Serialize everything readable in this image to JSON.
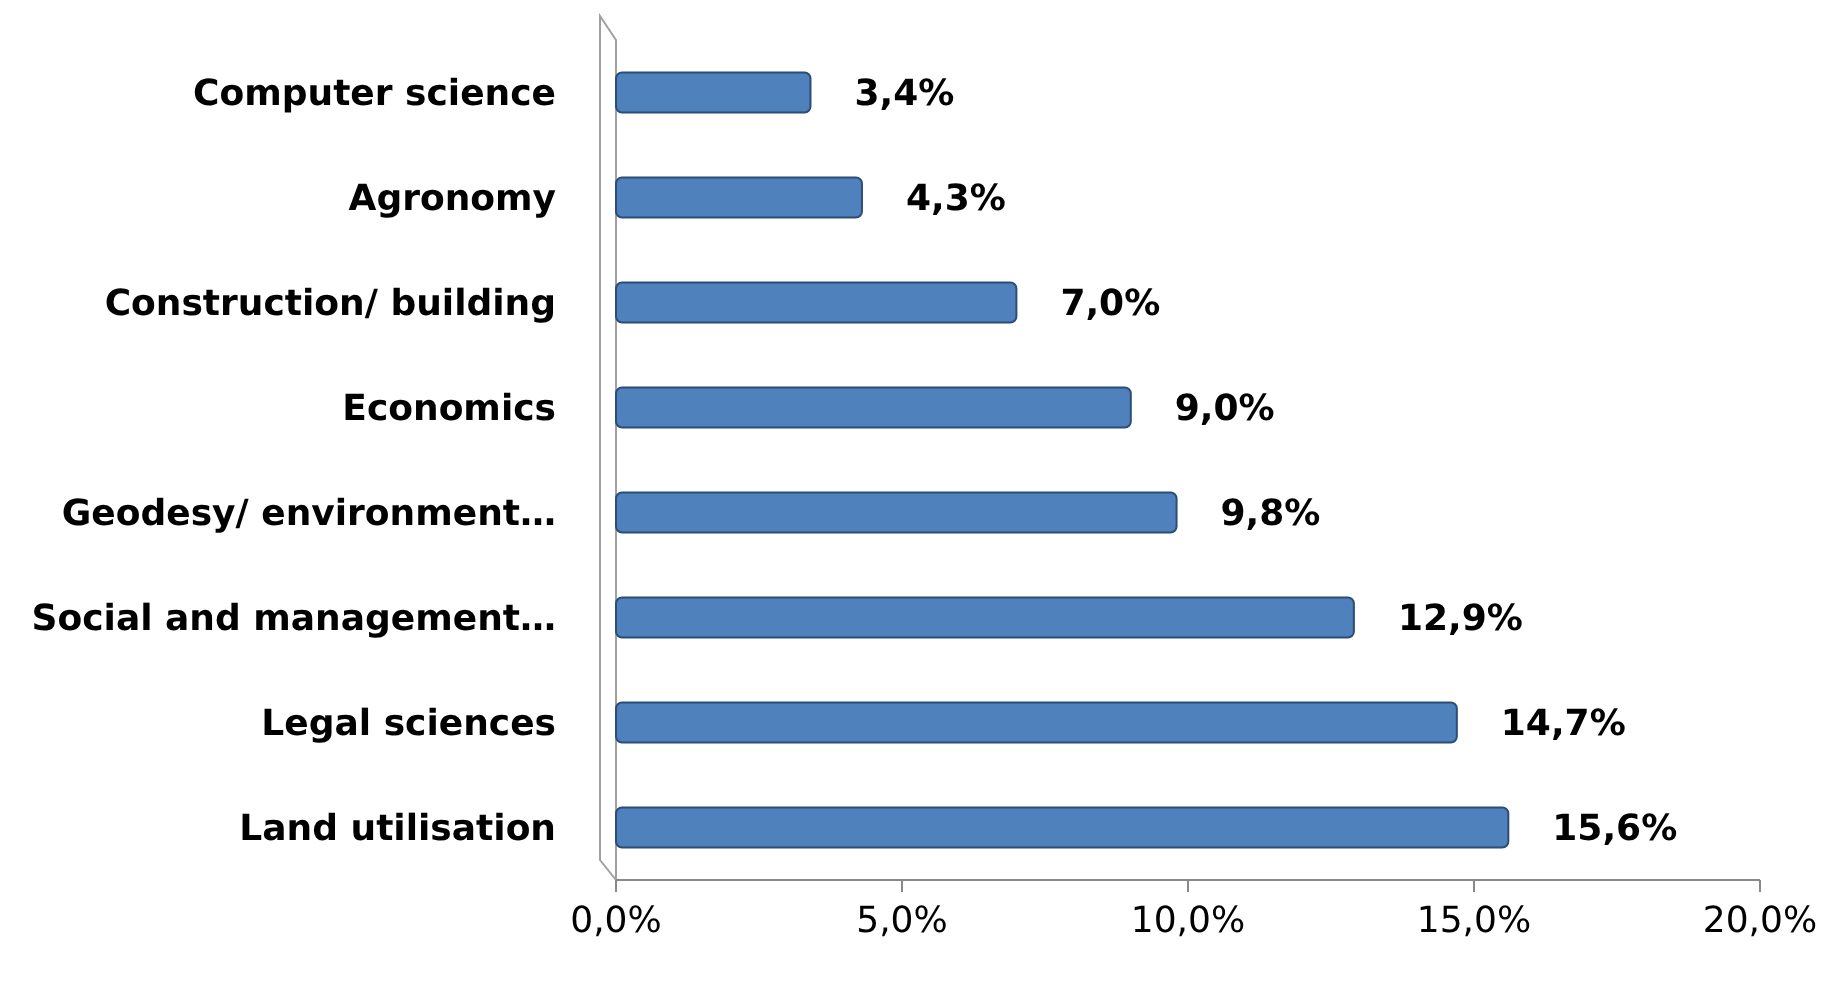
{
  "chart_data": {
    "type": "bar",
    "orientation": "horizontal",
    "categories": [
      "Computer science",
      "Agronomy",
      "Construction/ building",
      "Economics",
      "Geodesy/ environment…",
      "Social and management…",
      "Legal sciences",
      "Land utilisation"
    ],
    "values": [
      3.4,
      4.3,
      7.0,
      9.0,
      9.8,
      12.9,
      14.7,
      15.6
    ],
    "value_labels": [
      "3,4%",
      "4,3%",
      "7,0%",
      "9,0%",
      "9,8%",
      "12,9%",
      "14,7%",
      "15,6%"
    ],
    "color": "#4f81bd",
    "xlim": [
      0,
      20
    ],
    "xticks": [
      {
        "value": 0,
        "label": "0,0%"
      },
      {
        "value": 5,
        "label": "5,0%"
      },
      {
        "value": 10,
        "label": "10,0%"
      },
      {
        "value": 15,
        "label": "15,0%"
      },
      {
        "value": 20,
        "label": "20,0%"
      }
    ],
    "grid": false
  }
}
